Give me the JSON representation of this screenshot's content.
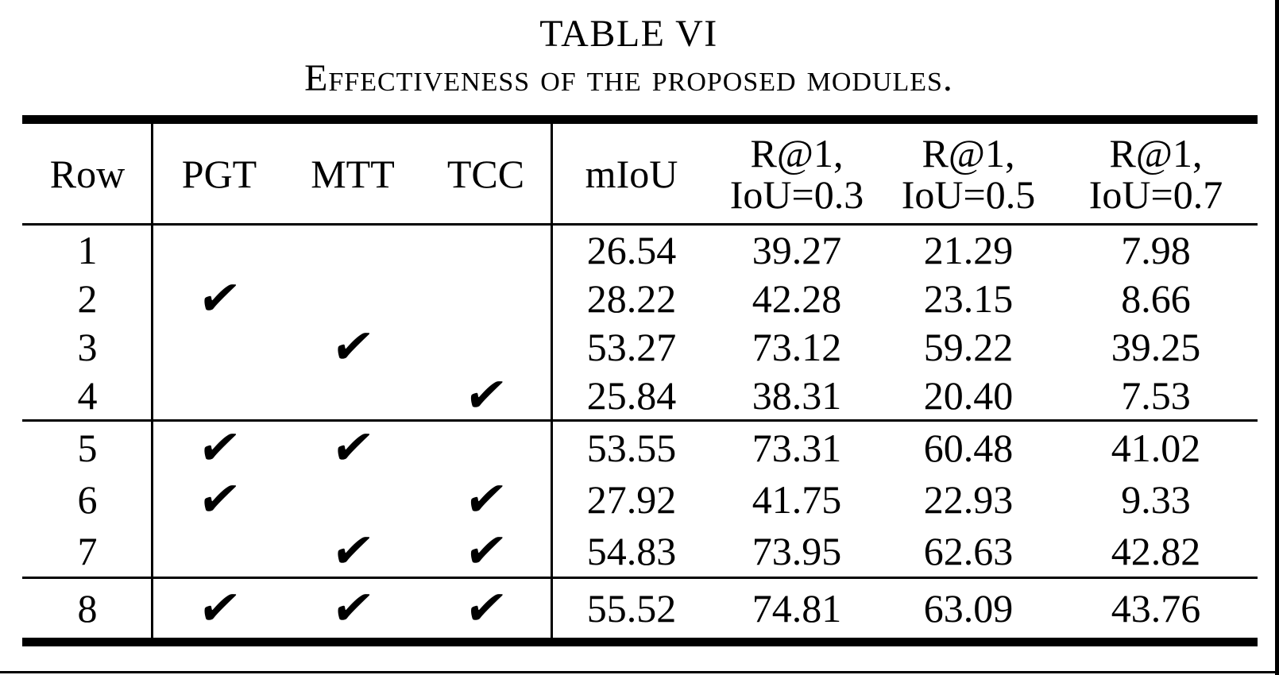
{
  "caption": {
    "number": "TABLE VI",
    "text": "Effectiveness of the proposed modules."
  },
  "table": {
    "headers": {
      "row": "Row",
      "pgt": "PGT",
      "mtt": "MTT",
      "tcc": "TCC",
      "miou": "mIoU",
      "r1_03": {
        "line1": "R@1,",
        "line2": "IoU=0.3"
      },
      "r1_05": {
        "line1": "R@1,",
        "line2": "IoU=0.5"
      },
      "r1_07": {
        "line1": "R@1,",
        "line2": "IoU=0.7"
      }
    },
    "check_glyph": "✔",
    "rows": [
      {
        "row": "1",
        "pgt": "",
        "mtt": "",
        "tcc": "",
        "miou": "26.54",
        "r1_03": "39.27",
        "r1_05": "21.29",
        "r1_07": "7.98"
      },
      {
        "row": "2",
        "pgt": "✔",
        "mtt": "",
        "tcc": "",
        "miou": "28.22",
        "r1_03": "42.28",
        "r1_05": "23.15",
        "r1_07": "8.66"
      },
      {
        "row": "3",
        "pgt": "",
        "mtt": "✔",
        "tcc": "",
        "miou": "53.27",
        "r1_03": "73.12",
        "r1_05": "59.22",
        "r1_07": "39.25"
      },
      {
        "row": "4",
        "pgt": "",
        "mtt": "",
        "tcc": "✔",
        "miou": "25.84",
        "r1_03": "38.31",
        "r1_05": "20.40",
        "r1_07": "7.53"
      },
      {
        "row": "5",
        "pgt": "✔",
        "mtt": "✔",
        "tcc": "",
        "miou": "53.55",
        "r1_03": "73.31",
        "r1_05": "60.48",
        "r1_07": "41.02"
      },
      {
        "row": "6",
        "pgt": "✔",
        "mtt": "",
        "tcc": "✔",
        "miou": "27.92",
        "r1_03": "41.75",
        "r1_05": "22.93",
        "r1_07": "9.33"
      },
      {
        "row": "7",
        "pgt": "",
        "mtt": "✔",
        "tcc": "✔",
        "miou": "54.83",
        "r1_03": "73.95",
        "r1_05": "62.63",
        "r1_07": "42.82"
      },
      {
        "row": "8",
        "pgt": "✔",
        "mtt": "✔",
        "tcc": "✔",
        "miou": "55.52",
        "r1_03": "74.81",
        "r1_05": "63.09",
        "r1_07": "43.76"
      }
    ]
  }
}
